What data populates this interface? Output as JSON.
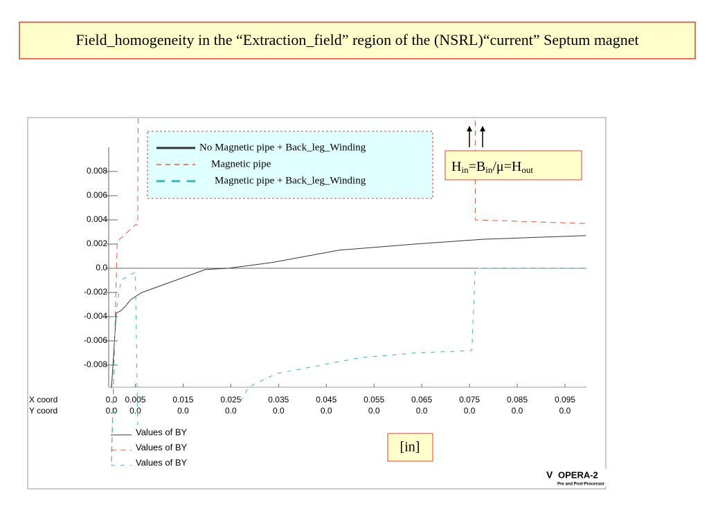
{
  "slide_title": "Field_homogeneity in the “Extraction_field” region of the (NSRL)“current” Septum magnet",
  "chart_data": {
    "type": "line",
    "xlim": [
      0,
      0.0995
    ],
    "ylim": [
      -0.01,
      0.01
    ],
    "xticks": [
      {
        "value": 0,
        "label": "0.0"
      },
      0.005,
      0.015,
      0.025,
      0.035,
      0.045,
      0.055,
      0.065,
      0.075,
      0.085,
      0.095
    ],
    "yticks": [
      0.008,
      0.006,
      0.004,
      0.002,
      {
        "value": 0,
        "label": "0.0"
      },
      -0.002,
      -0.004,
      -0.006,
      -0.008
    ],
    "x_row_label": "X coord",
    "y_row_label": "Y coord",
    "y_coord_labels": [
      "0.0",
      "0.0",
      "0.0",
      "0.0",
      "0.0",
      "0.0",
      "0.0",
      "0.0",
      "0.0",
      "0.0",
      "0.0"
    ],
    "series": [
      {
        "name": "Values of BY",
        "note": "No Magnetic pipe + Back_leg_Winding",
        "color": "#333333",
        "dash": "none",
        "x": [
          0,
          0.001,
          0.002,
          0.003,
          0.004,
          0.0064,
          0.0197,
          0.0245,
          0.034,
          0.0477,
          0.0636,
          0.078,
          0.0994
        ],
        "values": [
          -0.0099,
          -0.0037,
          -0.0035,
          -0.0031,
          -0.0026,
          -0.002,
          -0.0001,
          0,
          0.0005,
          0.0015,
          0.002,
          0.0024,
          0.0027
        ]
      },
      {
        "name": "Values of BY",
        "note": "Magnetic pipe",
        "color": "#e8553a",
        "dash": "8 6",
        "x": [
          0,
          0.0012,
          0.005,
          0.0055,
          0.0056,
          0.03,
          0.0762,
          0.0762,
          0.0994
        ],
        "values": [
          -0.016,
          0.0022,
          0.0036,
          0.0036,
          0.013,
          null,
          0.013,
          0.004,
          0.0037
        ]
      },
      {
        "name": "Values of BY",
        "note": "Magnetic pipe + Back_leg_Winding",
        "color": "#3ab5b5",
        "dash": "6 8",
        "x": [
          0,
          0.0008,
          0.002,
          0.005,
          0.0055,
          0.015,
          0.027,
          0.0288,
          0.0346,
          0.052,
          0.0636,
          0.0755,
          0.0762,
          0.0994
        ],
        "values": [
          -0.016,
          -0.004,
          -0.001,
          -0.0003,
          -0.013,
          null,
          -0.011,
          -0.0098,
          -0.0087,
          -0.0074,
          -0.007,
          -0.0068,
          0,
          0
        ]
      }
    ],
    "unit_label": "[in]",
    "annotation_parts": [
      "H",
      "in",
      "=B",
      "in",
      "/μ=H",
      "out"
    ],
    "logo": {
      "name": "OPERA-2",
      "sub": "Pre and Post-Processor"
    }
  }
}
